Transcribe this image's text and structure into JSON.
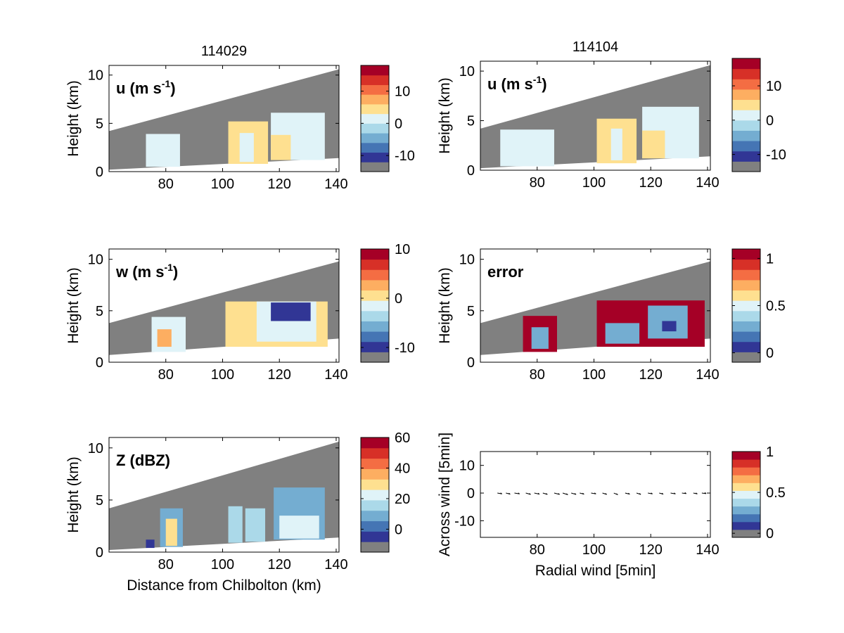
{
  "colormap": [
    "#808080",
    "#313695",
    "#4575b4",
    "#74add1",
    "#abd9e9",
    "#e0f3f8",
    "#fee090",
    "#fdae61",
    "#f46d43",
    "#d73027",
    "#a50026"
  ],
  "shade_color": "#808080",
  "chart_data": [
    {
      "type": "heatmap",
      "title": "114029",
      "panel_label": "u (m s",
      "panel_label_sup": "-1",
      "panel_label_end": ")",
      "ylabel": "Height (km)",
      "xlabel": "",
      "xlim": [
        60,
        141
      ],
      "ylim": [
        0,
        11
      ],
      "xticks": [
        80,
        100,
        120,
        140
      ],
      "yticks": [
        0,
        5,
        10
      ],
      "shade_low": [
        [
          60,
          0.2
        ],
        [
          141,
          1.4
        ]
      ],
      "shade_high": [
        [
          60,
          4.2
        ],
        [
          141,
          10.6
        ]
      ],
      "cells": [
        {
          "x0": 73,
          "x1": 85,
          "y0": 0.5,
          "y1": 3.9,
          "c": 5
        },
        {
          "x0": 102,
          "x1": 116,
          "y0": 0.8,
          "y1": 5.2,
          "c": 6
        },
        {
          "x0": 106,
          "x1": 111,
          "y0": 1.0,
          "y1": 4.0,
          "c": 5
        },
        {
          "x0": 117,
          "x1": 136,
          "y0": 1.2,
          "y1": 6.1,
          "c": 5
        },
        {
          "x0": 117,
          "x1": 124,
          "y0": 1.2,
          "y1": 3.8,
          "c": 6
        }
      ],
      "colorbar": {
        "vmin": -15,
        "vmax": 18,
        "ticks": [
          -10,
          0,
          10
        ]
      }
    },
    {
      "type": "heatmap",
      "title": "114104",
      "panel_label": "u (m s",
      "panel_label_sup": "-1",
      "panel_label_end": ")",
      "ylabel": "Height (km)",
      "xlabel": "",
      "xlim": [
        60,
        141
      ],
      "ylim": [
        0,
        11
      ],
      "xticks": [
        80,
        100,
        120,
        140
      ],
      "yticks": [
        0,
        5,
        10
      ],
      "shade_low": [
        [
          60,
          0.2
        ],
        [
          141,
          1.4
        ]
      ],
      "shade_high": [
        [
          60,
          4.2
        ],
        [
          141,
          10.6
        ]
      ],
      "cells": [
        {
          "x0": 67,
          "x1": 86,
          "y0": 0.4,
          "y1": 4.1,
          "c": 5
        },
        {
          "x0": 101,
          "x1": 115,
          "y0": 0.7,
          "y1": 5.2,
          "c": 6
        },
        {
          "x0": 106,
          "x1": 110,
          "y0": 1.0,
          "y1": 4.2,
          "c": 5
        },
        {
          "x0": 117,
          "x1": 137,
          "y0": 1.2,
          "y1": 6.4,
          "c": 5
        },
        {
          "x0": 117,
          "x1": 125,
          "y0": 1.2,
          "y1": 4.0,
          "c": 6
        }
      ],
      "colorbar": {
        "vmin": -15,
        "vmax": 18,
        "ticks": [
          -10,
          0,
          10
        ]
      }
    },
    {
      "type": "heatmap",
      "title": "",
      "panel_label": "w (m s",
      "panel_label_sup": "-1",
      "panel_label_end": ")",
      "ylabel": "Height (km)",
      "xlabel": "",
      "xlim": [
        60,
        141
      ],
      "ylim": [
        0,
        11
      ],
      "xticks": [
        80,
        100,
        120,
        140
      ],
      "yticks": [
        0,
        5,
        10
      ],
      "shade_low": [
        [
          60,
          0.7
        ],
        [
          141,
          2.3
        ]
      ],
      "shade_high": [
        [
          60,
          3.8
        ],
        [
          141,
          9.8
        ]
      ],
      "cells": [
        {
          "x0": 75,
          "x1": 87,
          "y0": 1.0,
          "y1": 4.4,
          "c": 5
        },
        {
          "x0": 77,
          "x1": 82,
          "y0": 1.5,
          "y1": 3.2,
          "c": 7
        },
        {
          "x0": 101,
          "x1": 137,
          "y0": 1.5,
          "y1": 5.9,
          "c": 6
        },
        {
          "x0": 112,
          "x1": 133,
          "y0": 2.0,
          "y1": 5.9,
          "c": 5
        },
        {
          "x0": 117,
          "x1": 131,
          "y0": 4.0,
          "y1": 5.8,
          "c": 1
        }
      ],
      "colorbar": {
        "vmin": -13,
        "vmax": 10,
        "ticks": [
          -10,
          0,
          10
        ]
      }
    },
    {
      "type": "heatmap",
      "title": "",
      "panel_label": "error",
      "panel_label_sup": "",
      "panel_label_end": "",
      "ylabel": "Height (km)",
      "xlabel": "",
      "xlim": [
        60,
        141
      ],
      "ylim": [
        0,
        11
      ],
      "xticks": [
        80,
        100,
        120,
        140
      ],
      "yticks": [
        0,
        5,
        10
      ],
      "shade_low": [
        [
          60,
          0.7
        ],
        [
          141,
          2.3
        ]
      ],
      "shade_high": [
        [
          60,
          3.8
        ],
        [
          141,
          9.8
        ]
      ],
      "cells": [
        {
          "x0": 75,
          "x1": 87,
          "y0": 1.0,
          "y1": 4.5,
          "c": 10
        },
        {
          "x0": 78,
          "x1": 84,
          "y0": 1.3,
          "y1": 3.4,
          "c": 3
        },
        {
          "x0": 101,
          "x1": 139,
          "y0": 1.5,
          "y1": 6.0,
          "c": 10
        },
        {
          "x0": 104,
          "x1": 116,
          "y0": 1.8,
          "y1": 3.8,
          "c": 3
        },
        {
          "x0": 119,
          "x1": 133,
          "y0": 2.3,
          "y1": 5.5,
          "c": 3
        },
        {
          "x0": 124,
          "x1": 129,
          "y0": 3.0,
          "y1": 4.0,
          "c": 1
        }
      ],
      "colorbar": {
        "vmin": -0.1,
        "vmax": 1.1,
        "ticks": [
          0,
          0.5,
          1
        ]
      }
    },
    {
      "type": "heatmap",
      "title": "",
      "panel_label": "Z (dBZ)",
      "panel_label_sup": "",
      "panel_label_end": "",
      "ylabel": "Height (km)",
      "xlabel": "Distance from Chilbolton (km)",
      "xlim": [
        60,
        141
      ],
      "ylim": [
        0,
        11
      ],
      "xticks": [
        80,
        100,
        120,
        140
      ],
      "yticks": [
        0,
        5,
        10
      ],
      "shade_low": [
        [
          60,
          0.2
        ],
        [
          141,
          1.4
        ]
      ],
      "shade_high": [
        [
          60,
          4.2
        ],
        [
          141,
          10.6
        ]
      ],
      "cells": [
        {
          "x0": 73,
          "x1": 76,
          "y0": 0.4,
          "y1": 1.2,
          "c": 1
        },
        {
          "x0": 78,
          "x1": 86,
          "y0": 0.5,
          "y1": 4.2,
          "c": 3
        },
        {
          "x0": 80,
          "x1": 84,
          "y0": 0.6,
          "y1": 3.2,
          "c": 6
        },
        {
          "x0": 102,
          "x1": 107,
          "y0": 0.9,
          "y1": 4.4,
          "c": 4
        },
        {
          "x0": 108,
          "x1": 115,
          "y0": 1.0,
          "y1": 4.2,
          "c": 4
        },
        {
          "x0": 118,
          "x1": 136,
          "y0": 1.2,
          "y1": 6.2,
          "c": 3
        },
        {
          "x0": 120,
          "x1": 134,
          "y0": 1.3,
          "y1": 3.5,
          "c": 5
        }
      ],
      "colorbar": {
        "vmin": -15,
        "vmax": 60,
        "ticks": [
          0,
          20,
          40,
          60
        ]
      }
    },
    {
      "type": "scatter",
      "title": "",
      "panel_label": "",
      "panel_label_sup": "",
      "panel_label_end": "",
      "ylabel": "Across wind [5min]",
      "xlabel": "Radial wind [5min]",
      "xlim": [
        60,
        141
      ],
      "ylim": [
        -16,
        15
      ],
      "xticks": [
        80,
        100,
        120,
        140
      ],
      "yticks": [
        -10,
        0,
        10
      ],
      "shade_low": [],
      "shade_high": [],
      "cells": [],
      "arrows": [
        {
          "x": 66,
          "u": 1.6,
          "v": -0.3
        },
        {
          "x": 69,
          "u": 1.5,
          "v": -0.4
        },
        {
          "x": 72,
          "u": 1.8,
          "v": -0.3
        },
        {
          "x": 76,
          "u": 1.7,
          "v": -0.5
        },
        {
          "x": 79,
          "u": 1.8,
          "v": -0.4
        },
        {
          "x": 82,
          "u": 1.6,
          "v": -0.5
        },
        {
          "x": 86,
          "u": 1.9,
          "v": -0.5
        },
        {
          "x": 89,
          "u": 1.8,
          "v": -0.6
        },
        {
          "x": 92,
          "u": 1.7,
          "v": -0.5
        },
        {
          "x": 95,
          "u": 1.5,
          "v": -0.4
        },
        {
          "x": 99,
          "u": 1.7,
          "v": -0.3
        },
        {
          "x": 103,
          "u": 1.5,
          "v": -0.5
        },
        {
          "x": 107,
          "u": 1.4,
          "v": -0.6
        },
        {
          "x": 111,
          "u": 1.6,
          "v": -0.4
        },
        {
          "x": 115,
          "u": 1.5,
          "v": -0.5
        },
        {
          "x": 119,
          "u": 1.6,
          "v": -0.3
        },
        {
          "x": 123,
          "u": 1.4,
          "v": -0.4
        },
        {
          "x": 127,
          "u": 1.7,
          "v": -0.3
        },
        {
          "x": 131,
          "u": 1.5,
          "v": -0.2
        },
        {
          "x": 135,
          "u": 1.4,
          "v": -0.3
        },
        {
          "x": 138,
          "u": 1.5,
          "v": -0.2
        }
      ],
      "colorbar": {
        "vmin": -0.05,
        "vmax": 1.0,
        "ticks": [
          0,
          0.5,
          1
        ]
      }
    }
  ]
}
